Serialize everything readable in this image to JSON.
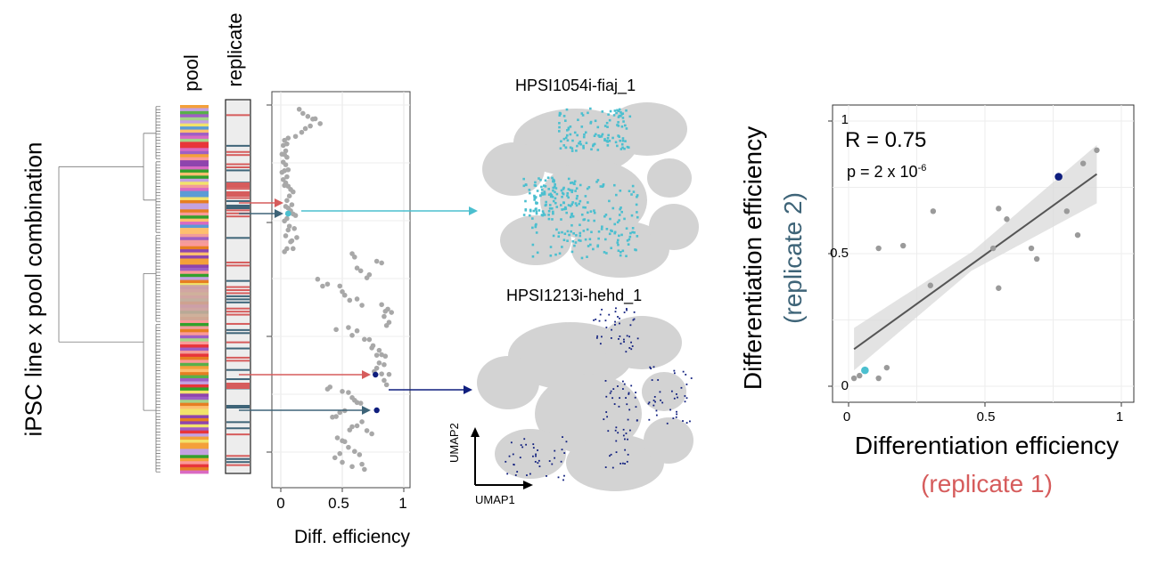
{
  "left_panel": {
    "y_axis_label": "iPSC line x pool combination",
    "column_labels": {
      "pool": "pool",
      "replicate": "replicate"
    },
    "x_axis_label": "Diff. efficiency",
    "x_ticks": [
      "0",
      "0.5",
      "1"
    ]
  },
  "umaps": [
    {
      "title": "HPSI1054i-fiaj_1",
      "color": "#4BBFCF"
    },
    {
      "title": "HPSI1213i-hehd_1",
      "color": "#0F1E7E"
    }
  ],
  "umap_axes": {
    "y_label": "UMAP2",
    "x_label": "UMAP1"
  },
  "colors": {
    "replicate1": "#D65C5C",
    "replicate2": "#3E6478",
    "grey_point": "#A8A8A8",
    "umap_bg": "#D3D3D3",
    "panel_bg": "#EBEBEB"
  },
  "chart_data": [
    {
      "type": "scatter",
      "title": "",
      "xlabel": "Diff. efficiency",
      "ylabel": "",
      "xlim": [
        0,
        1
      ],
      "x_ticks": [
        0,
        0.5,
        1
      ],
      "grid": true,
      "y_is_categorical": true,
      "x": [
        0.15,
        0.18,
        0.22,
        0.26,
        0.28,
        0.32,
        0.24,
        0.2,
        0.17,
        0.12,
        0.06,
        0.03,
        0.05,
        0.02,
        0.04,
        0.01,
        0.03,
        0.05,
        0.02,
        0.04,
        0.06,
        0.03,
        0.01,
        0.05,
        0.02,
        0.04,
        0.03,
        0.06,
        0.08,
        0.1,
        0.07,
        0.05,
        0.09,
        0.04,
        0.06,
        0.08,
        0.1,
        0.12,
        0.05,
        0.03,
        0.07,
        0.11,
        0.06,
        0.04,
        0.13,
        0.09,
        0.08,
        0.05,
        0.1,
        0.03,
        0.58,
        0.6,
        0.78,
        0.82,
        0.62,
        0.65,
        0.72,
        0.7,
        0.3,
        0.38,
        0.34,
        0.48,
        0.5,
        0.52,
        0.62,
        0.56,
        0.66,
        0.82,
        0.85,
        0.87,
        0.9,
        0.84,
        0.88,
        0.86,
        0.55,
        0.45,
        0.62,
        0.58,
        0.72,
        0.68,
        0.75,
        0.74,
        0.8,
        0.78,
        0.82,
        0.85,
        0.8,
        0.84,
        0.78,
        0.76,
        0.88,
        0.82,
        0.84,
        0.86,
        0.4,
        0.38,
        0.5,
        0.55,
        0.58,
        0.6,
        0.62,
        0.65,
        0.52,
        0.48,
        0.42,
        0.45,
        0.66,
        0.62,
        0.58,
        0.56,
        0.7,
        0.74,
        0.46,
        0.5,
        0.52,
        0.55,
        0.6,
        0.64,
        0.48,
        0.44,
        0.5,
        0.66,
        0.58,
        0.68
      ],
      "highlighted_points": [
        {
          "x": 0.06,
          "color": "#4BBFCF"
        },
        {
          "x": 0.77,
          "color": "#0F1E7E"
        },
        {
          "x": 0.78,
          "color": "#0F1E7E"
        }
      ]
    },
    {
      "type": "scatter",
      "title": "",
      "xlabel": "Differentiation efficiency",
      "xlabel_sub": "(replicate 1)",
      "ylabel": "Differentiation efficiency",
      "ylabel_sub": "(replicate 2)",
      "xlim": [
        0,
        1
      ],
      "ylim": [
        0,
        1
      ],
      "x_ticks": [
        "0",
        "0.5",
        "1"
      ],
      "y_ticks": [
        "0",
        "0.5",
        "1"
      ],
      "grid": true,
      "annotations": {
        "r": "R = 0.75",
        "p": "p = 2 x 10",
        "p_exp": "-6"
      },
      "points": [
        {
          "x": 0.02,
          "y": 0.03
        },
        {
          "x": 0.04,
          "y": 0.04
        },
        {
          "x": 0.11,
          "y": 0.03
        },
        {
          "x": 0.14,
          "y": 0.07
        },
        {
          "x": 0.11,
          "y": 0.52
        },
        {
          "x": 0.2,
          "y": 0.53
        },
        {
          "x": 0.3,
          "y": 0.38
        },
        {
          "x": 0.31,
          "y": 0.66
        },
        {
          "x": 0.53,
          "y": 0.52
        },
        {
          "x": 0.55,
          "y": 0.37
        },
        {
          "x": 0.55,
          "y": 0.67
        },
        {
          "x": 0.58,
          "y": 0.63
        },
        {
          "x": 0.67,
          "y": 0.52
        },
        {
          "x": 0.69,
          "y": 0.48
        },
        {
          "x": 0.8,
          "y": 0.66
        },
        {
          "x": 0.84,
          "y": 0.57
        },
        {
          "x": 0.86,
          "y": 0.84
        },
        {
          "x": 0.91,
          "y": 0.89
        }
      ],
      "highlighted_points": [
        {
          "x": 0.06,
          "y": 0.06,
          "color": "#4BBFCF"
        },
        {
          "x": 0.77,
          "y": 0.79,
          "color": "#0F1E7E"
        }
      ],
      "fit_line": {
        "x": [
          0.02,
          0.91
        ],
        "y": [
          0.14,
          0.8
        ]
      }
    }
  ]
}
